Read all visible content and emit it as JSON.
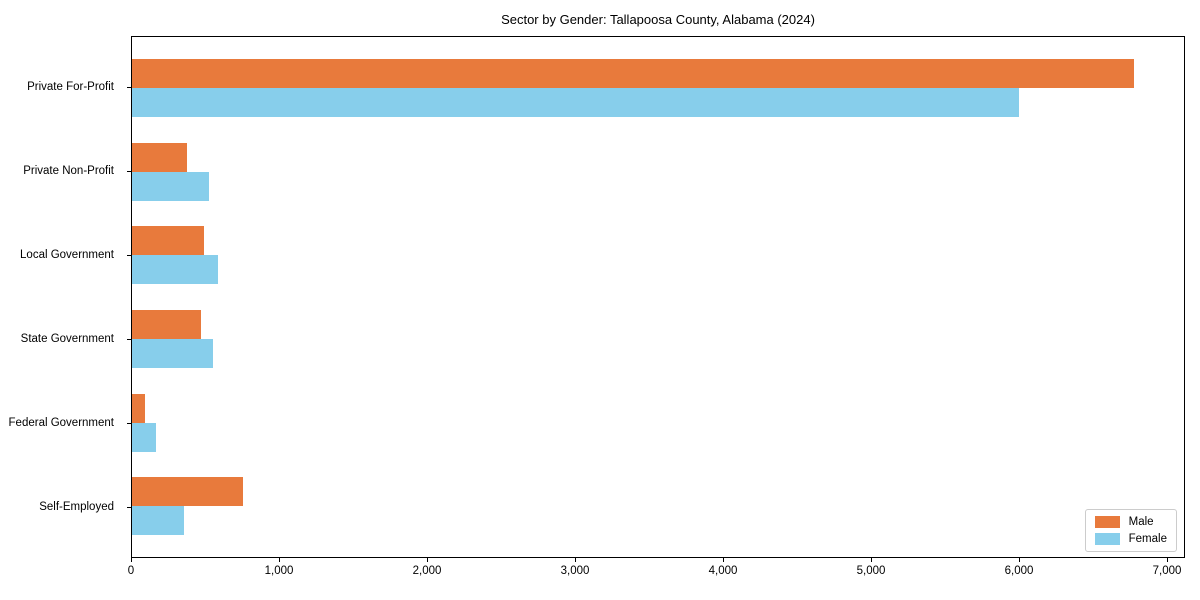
{
  "chart_data": {
    "type": "bar",
    "orientation": "horizontal",
    "title": "Sector by Gender: Tallapoosa County, Alabama (2024)",
    "categories": [
      "Private For-Profit",
      "Private Non-Profit",
      "Local Government",
      "State Government",
      "Federal Government",
      "Self-Employed"
    ],
    "series": [
      {
        "name": "Male",
        "color": "#e87a3c",
        "values": [
          6780,
          370,
          490,
          465,
          90,
          750
        ]
      },
      {
        "name": "Female",
        "color": "#87ceeb",
        "values": [
          6000,
          520,
          580,
          550,
          160,
          350
        ]
      }
    ],
    "xlabel": "",
    "ylabel": "",
    "xlim": [
      0,
      7119
    ],
    "xticks": [
      0,
      1000,
      2000,
      3000,
      4000,
      5000,
      6000,
      7000
    ],
    "xtick_labels": [
      "0",
      "1,000",
      "2,000",
      "3,000",
      "4,000",
      "5,000",
      "6,000",
      "7,000"
    ],
    "grid": false,
    "legend_position": "lower right",
    "background_color": "#ffffff",
    "spine_color": "#000000"
  }
}
